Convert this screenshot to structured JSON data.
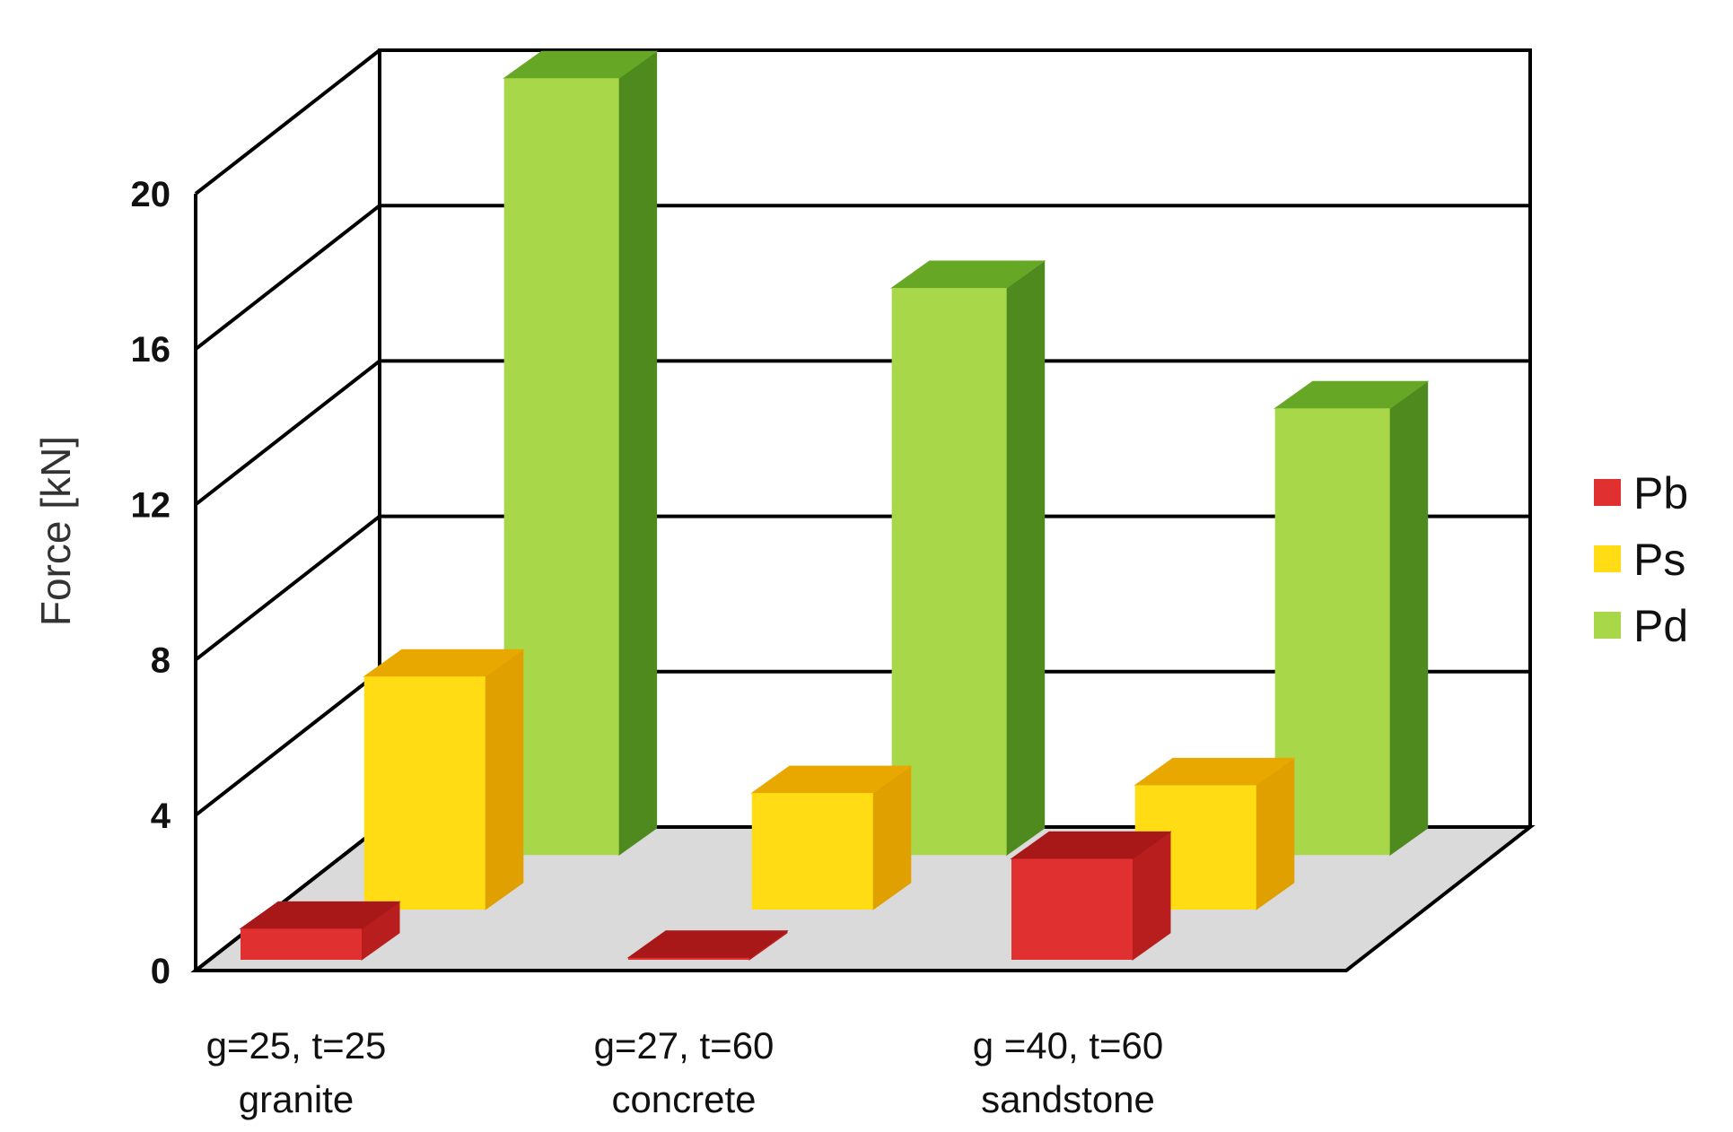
{
  "chart_data": {
    "type": "bar",
    "style": "3d-clustered",
    "ylabel": "Force [kN]",
    "xlabel": "",
    "ylim": [
      0,
      20
    ],
    "yticks": [
      0,
      4,
      8,
      12,
      16,
      20
    ],
    "grid": true,
    "legend_position": "right",
    "categories": [
      {
        "line1": "g=25, t=25",
        "line2": "granite"
      },
      {
        "line1": "g=27, t=60",
        "line2": "concrete"
      },
      {
        "line1": "g =40, t=60",
        "line2": "sandstone"
      }
    ],
    "series": [
      {
        "name": "Pb",
        "values": [
          0.8,
          0.05,
          2.6
        ],
        "color": "#e03030",
        "side_color": "#b81e1e",
        "top_color": "#a81818"
      },
      {
        "name": "Ps",
        "values": [
          6.0,
          3.0,
          3.2
        ],
        "color": "#ffdc14",
        "side_color": "#e0a000",
        "top_color": "#e8a800"
      },
      {
        "name": "Pd",
        "values": [
          20.0,
          14.6,
          11.5
        ],
        "color": "#a8d84a",
        "side_color": "#4e8a1e",
        "top_color": "#66a826"
      }
    ],
    "floor_color": "#dadada"
  }
}
